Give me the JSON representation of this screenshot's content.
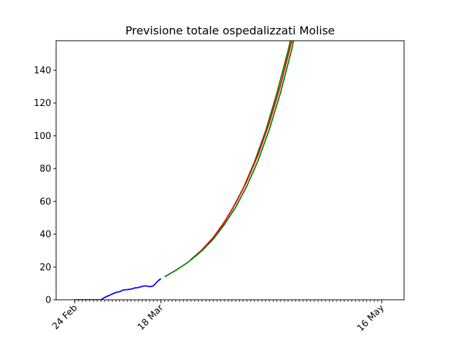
{
  "chart_data": {
    "type": "line",
    "title": "Previsione totale ospedalizzati Molise",
    "xlabel": "",
    "ylabel": "",
    "x_axis": {
      "type": "date",
      "range": [
        "2020-02-19",
        "2020-05-22"
      ],
      "labeled_ticks": [
        {
          "date": "2020-02-24",
          "label": "24 Feb"
        },
        {
          "date": "2020-03-18",
          "label": "18 Mar"
        },
        {
          "date": "2020-05-16",
          "label": "16 May"
        }
      ],
      "minor_ticks_daily_from": "2020-02-24",
      "minor_ticks_daily_to": "2020-05-16"
    },
    "ylim": [
      0,
      158
    ],
    "yticks": [
      0,
      20,
      40,
      60,
      80,
      100,
      120,
      140
    ],
    "grid": false,
    "series": [
      {
        "color": "#0000ff",
        "points": [
          [
            "2020-02-24",
            0
          ],
          [
            "2020-02-25",
            0
          ],
          [
            "2020-02-26",
            0
          ],
          [
            "2020-02-27",
            0
          ],
          [
            "2020-02-28",
            0
          ],
          [
            "2020-02-29",
            0
          ],
          [
            "2020-03-01",
            0
          ],
          [
            "2020-03-02",
            0
          ],
          [
            "2020-03-03",
            1.5
          ],
          [
            "2020-03-04",
            2.5
          ],
          [
            "2020-03-05",
            3.5
          ],
          [
            "2020-03-06",
            4.5
          ],
          [
            "2020-03-07",
            5
          ],
          [
            "2020-03-08",
            6
          ],
          [
            "2020-03-09",
            6.2
          ],
          [
            "2020-03-10",
            6.5
          ],
          [
            "2020-03-11",
            7.2
          ],
          [
            "2020-03-12",
            7.5
          ],
          [
            "2020-03-13",
            8.2
          ],
          [
            "2020-03-14",
            8.5
          ],
          [
            "2020-03-15",
            8
          ],
          [
            "2020-03-16",
            8.5
          ],
          [
            "2020-03-17",
            11
          ],
          [
            "2020-03-18",
            13
          ]
        ]
      },
      {
        "color": "#008000",
        "points": [
          [
            "2020-03-19",
            14
          ],
          [
            "2020-03-22",
            18
          ],
          [
            "2020-03-25",
            22.5
          ],
          [
            "2020-03-28",
            28
          ],
          [
            "2020-03-31",
            35
          ],
          [
            "2020-04-03",
            44
          ],
          [
            "2020-04-06",
            55
          ],
          [
            "2020-04-09",
            68
          ],
          [
            "2020-04-12",
            84
          ],
          [
            "2020-04-15",
            103
          ],
          [
            "2020-04-18",
            126
          ],
          [
            "2020-04-21",
            152
          ],
          [
            "2020-04-22",
            162
          ]
        ]
      },
      {
        "color": "#ff0000",
        "points": [
          [
            "2020-03-26",
            24.5
          ],
          [
            "2020-03-29",
            30.5
          ],
          [
            "2020-04-01",
            38
          ],
          [
            "2020-04-04",
            47.5
          ],
          [
            "2020-04-07",
            59
          ],
          [
            "2020-04-10",
            72.5
          ],
          [
            "2020-04-13",
            88.5
          ],
          [
            "2020-04-16",
            108
          ],
          [
            "2020-04-19",
            131
          ],
          [
            "2020-04-22",
            158
          ],
          [
            "2020-04-23",
            168
          ]
        ]
      },
      {
        "color": "#008000",
        "points": [
          [
            "2020-03-26",
            24.5
          ],
          [
            "2020-03-29",
            30
          ],
          [
            "2020-04-01",
            37
          ],
          [
            "2020-04-04",
            46
          ],
          [
            "2020-04-07",
            56.5
          ],
          [
            "2020-04-10",
            69.5
          ],
          [
            "2020-04-13",
            85
          ],
          [
            "2020-04-16",
            104
          ],
          [
            "2020-04-19",
            126.5
          ],
          [
            "2020-04-22",
            153
          ],
          [
            "2020-04-23",
            164
          ]
        ]
      }
    ]
  }
}
